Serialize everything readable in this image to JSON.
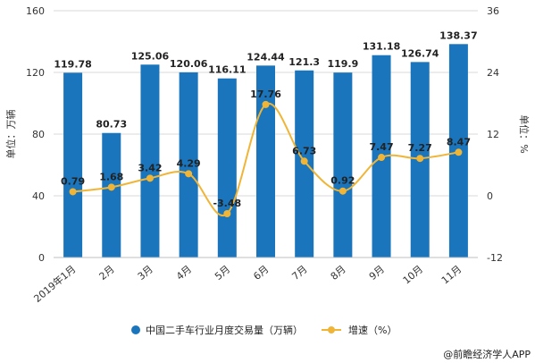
{
  "chart_data": {
    "type": "bar",
    "categories": [
      "2019年1月",
      "2月",
      "3月",
      "4月",
      "5月",
      "6月",
      "7月",
      "8月",
      "9月",
      "10月",
      "11月"
    ],
    "series": [
      {
        "name": "中国二手车行业月度交易量（万辆）",
        "type": "bar",
        "axis": "left",
        "values": [
          119.78,
          80.73,
          125.06,
          120.06,
          116.11,
          124.44,
          121.3,
          119.9,
          131.18,
          126.74,
          138.37
        ],
        "labels": [
          "119.78",
          "80.73",
          "125.06",
          "120.06",
          "116.11",
          "124.44",
          "121.3",
          "119.9",
          "131.18",
          "126.74",
          "138.37"
        ]
      },
      {
        "name": "增速（%）",
        "type": "line",
        "axis": "right",
        "values": [
          0.79,
          1.68,
          3.42,
          4.29,
          -3.48,
          17.76,
          6.73,
          0.92,
          7.47,
          7.27,
          8.47
        ],
        "labels": [
          "0.79",
          "1.68",
          "3.42",
          "4.29",
          "-3.48",
          "17.76",
          "6.73",
          "0.92",
          "7.47",
          "7.27",
          "8.47"
        ]
      }
    ],
    "y_left": {
      "label": "单位：万辆",
      "lim": [
        0,
        160
      ],
      "ticks": [
        "0",
        "40",
        "80",
        "120",
        "160"
      ]
    },
    "y_right": {
      "label": "单位：%",
      "lim": [
        -12,
        36
      ],
      "ticks": [
        "-12",
        "0",
        "12",
        "24",
        "36"
      ]
    },
    "grid": true,
    "legend": "bottom",
    "colors": {
      "bar": "#1a75bc",
      "line": "#f0b536",
      "grid": "#d9d9d9"
    }
  },
  "credit": "@前瞻经济学人APP"
}
